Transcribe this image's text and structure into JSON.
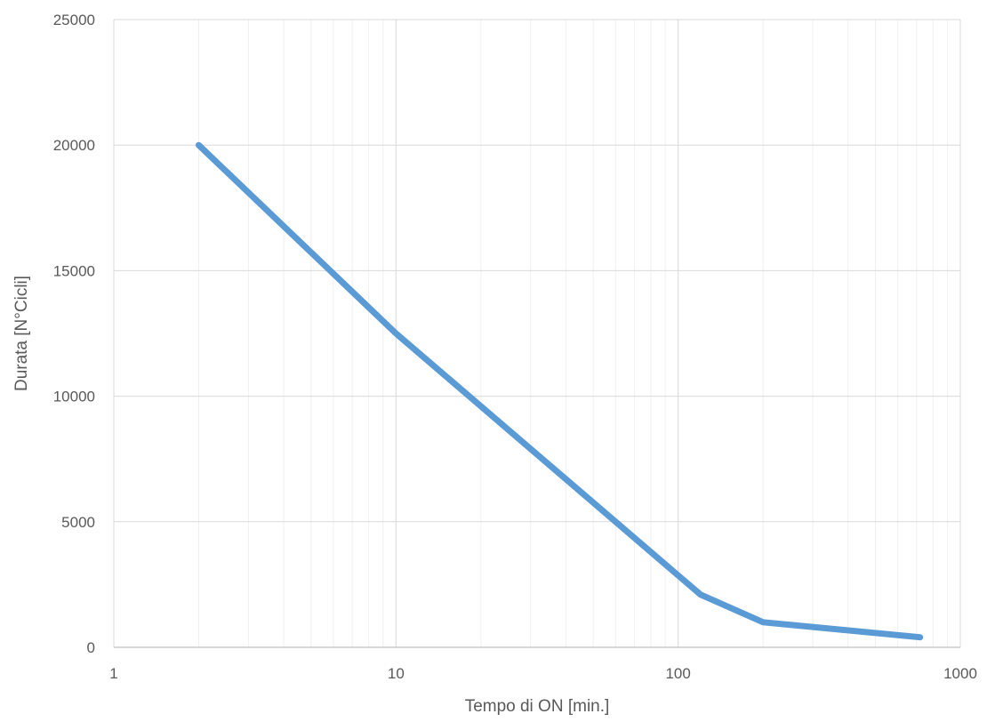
{
  "chart_data": {
    "type": "line",
    "x_scale": "log",
    "xlabel": "Tempo di ON [min.]",
    "ylabel": "Durata [N°Cicli]",
    "xlim": [
      1,
      1000
    ],
    "ylim": [
      0,
      25000
    ],
    "x_ticks": [
      "1",
      "10",
      "100",
      "1000"
    ],
    "y_ticks": [
      "0",
      "5000",
      "10000",
      "15000",
      "20000",
      "25000"
    ],
    "grid": true,
    "legend": "none",
    "series": [
      {
        "color": "#5B9BD5",
        "points": [
          {
            "x": 2,
            "y": 20000
          },
          {
            "x": 10,
            "y": 12500
          },
          {
            "x": 120,
            "y": 2100
          },
          {
            "x": 200,
            "y": 1000
          },
          {
            "x": 720,
            "y": 400
          }
        ]
      }
    ]
  }
}
